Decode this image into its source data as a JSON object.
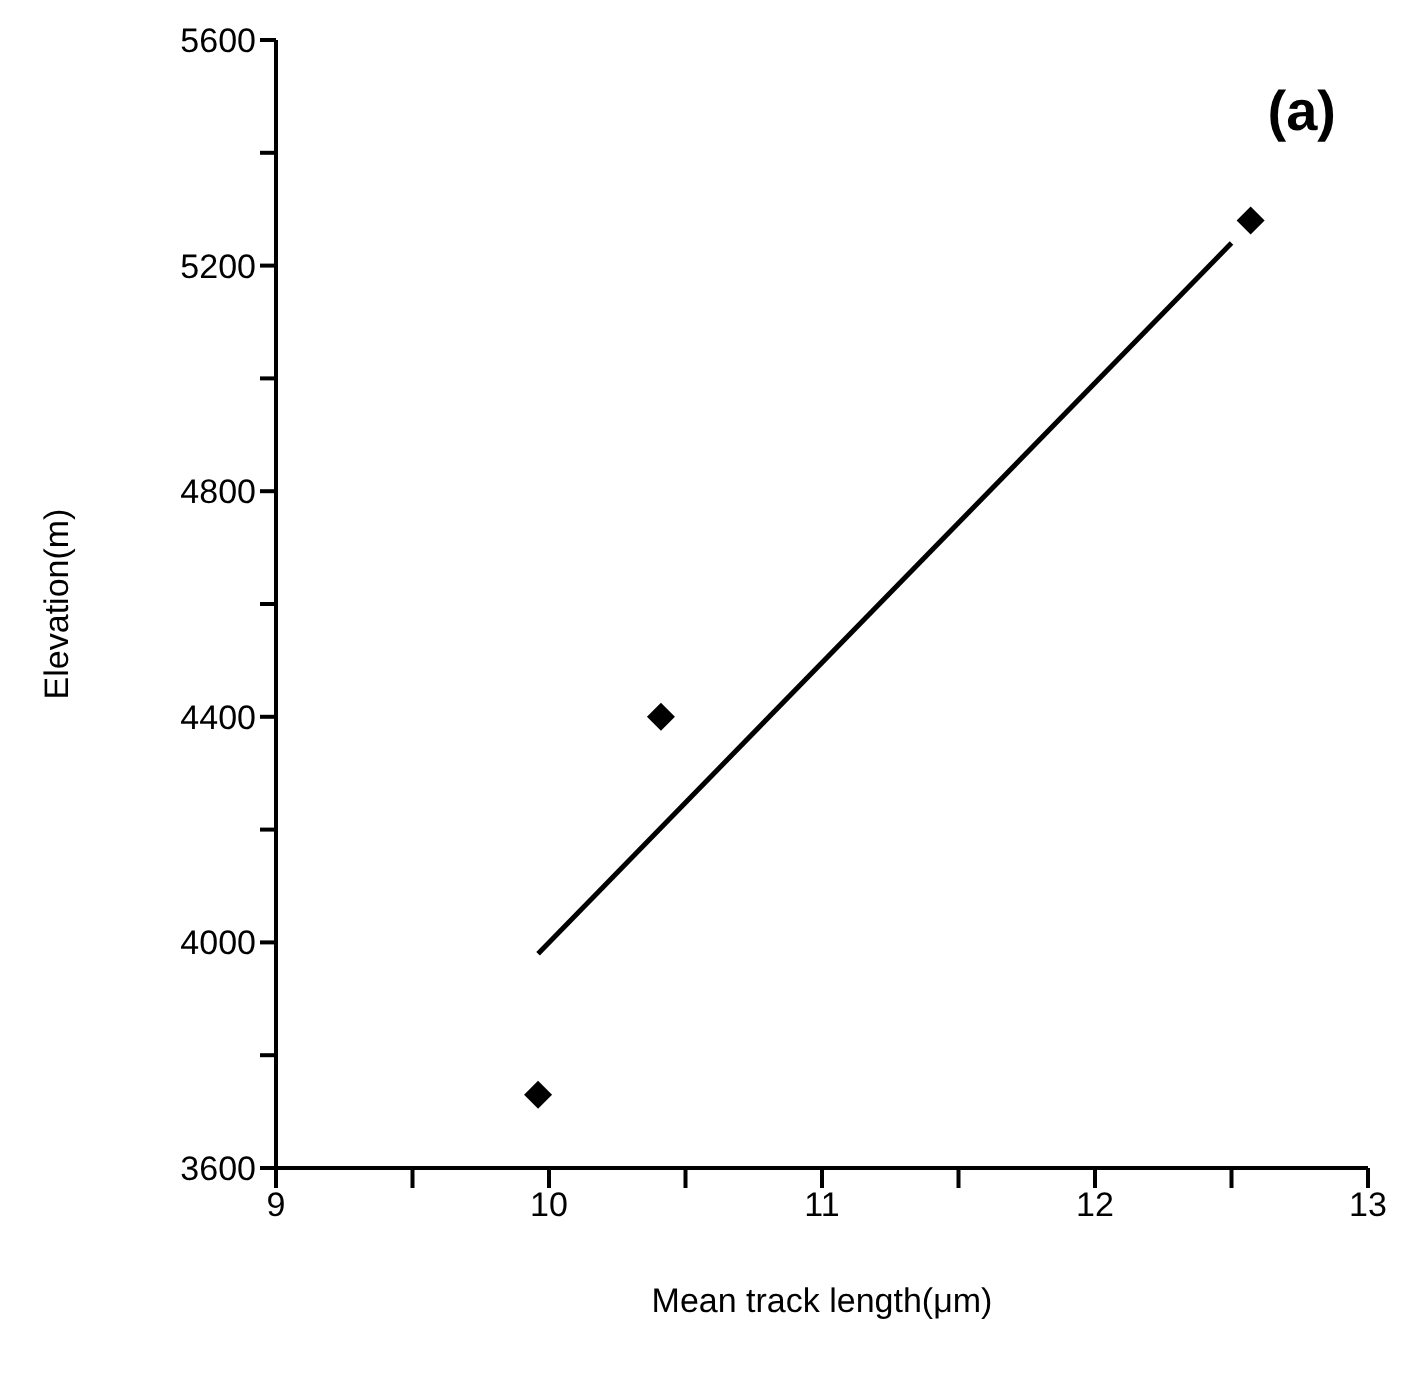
{
  "chart_data": {
    "type": "scatter",
    "xlabel": "Mean track length(μm)",
    "ylabel": "Elevation(m)",
    "annotations": [
      "(a)"
    ],
    "series": [
      {
        "color": "#000000",
        "marker": "diamond",
        "x": [
          9.96,
          10.41,
          12.57
        ],
        "values": [
          3730,
          4400,
          5280
        ]
      },
      {
        "type": "line",
        "color": "#000000",
        "marker": "none",
        "x": [
          9.96,
          12.5
        ],
        "values": [
          3980,
          5240
        ]
      }
    ],
    "xlim": [
      9,
      13
    ],
    "xticks": [
      9,
      {
        "value": 9.5,
        "label": null
      },
      10,
      {
        "value": 10.5,
        "label": null
      },
      11,
      {
        "value": 11.5,
        "label": null
      },
      12,
      {
        "value": 12.5,
        "label": null
      },
      13
    ],
    "ylim": [
      3600,
      5600
    ],
    "yticks": [
      3600,
      {
        "value": 3800,
        "label": null
      },
      4000,
      {
        "value": 4200,
        "label": null
      },
      4400,
      {
        "value": 4600,
        "label": null
      },
      4800,
      {
        "value": 5000,
        "label": null
      },
      5200,
      {
        "value": 5400,
        "label": null
      },
      5600
    ],
    "grid": false
  }
}
